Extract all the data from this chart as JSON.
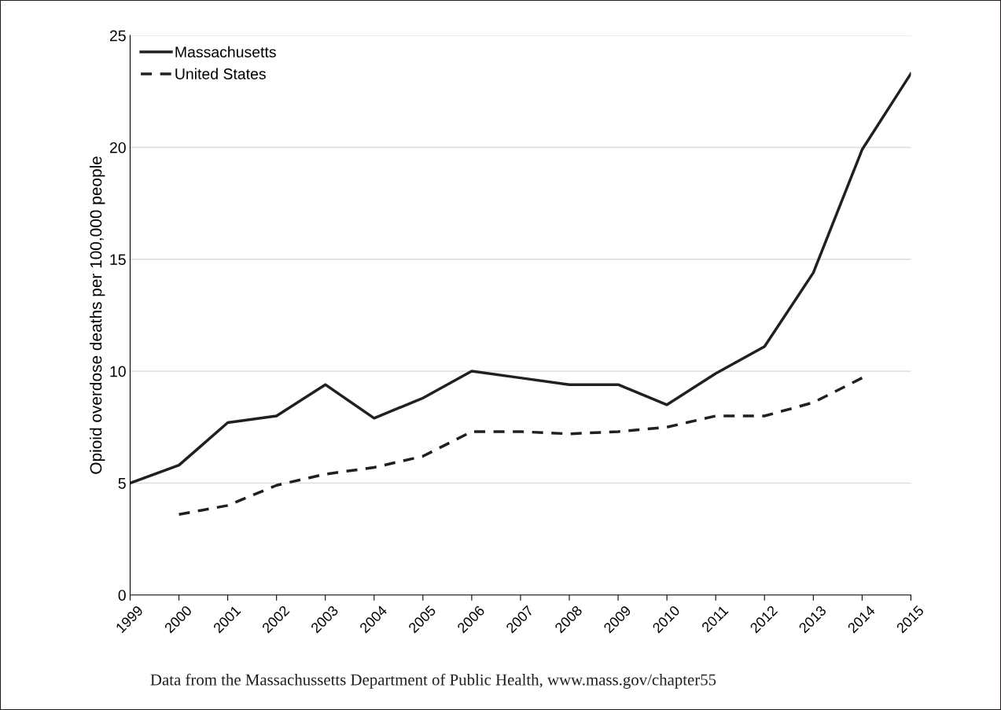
{
  "chart_data": {
    "type": "line",
    "ylabel": "Opioid overdose deaths per 100,000 people",
    "categories": [
      "1999",
      "2000",
      "2001",
      "2002",
      "2003",
      "2004",
      "2005",
      "2006",
      "2007",
      "2008",
      "2009",
      "2010",
      "2011",
      "2012",
      "2013",
      "2014",
      "2015"
    ],
    "series": [
      {
        "name": "Massachusetts",
        "color": "#231f20",
        "line_style": "solid",
        "values": [
          5.0,
          5.8,
          7.7,
          8.0,
          9.4,
          7.9,
          8.8,
          10.0,
          9.7,
          9.4,
          9.4,
          8.5,
          9.9,
          11.1,
          14.4,
          19.9,
          23.3
        ]
      },
      {
        "name": "United States",
        "color": "#231f20",
        "line_style": "dashed",
        "values": [
          null,
          3.6,
          4.0,
          4.9,
          5.4,
          5.7,
          6.2,
          7.3,
          7.3,
          7.2,
          7.3,
          7.5,
          8.0,
          8.0,
          8.6,
          9.7,
          null
        ]
      }
    ],
    "ylim": [
      0,
      25
    ],
    "yticks": [
      0,
      5,
      10,
      15,
      20,
      25
    ],
    "grid": "y",
    "legend": "top left",
    "marker": "none",
    "annotations": [
      "Data from the Massachussetts Department of Public Health, www.mass.gov/chapter55"
    ]
  }
}
